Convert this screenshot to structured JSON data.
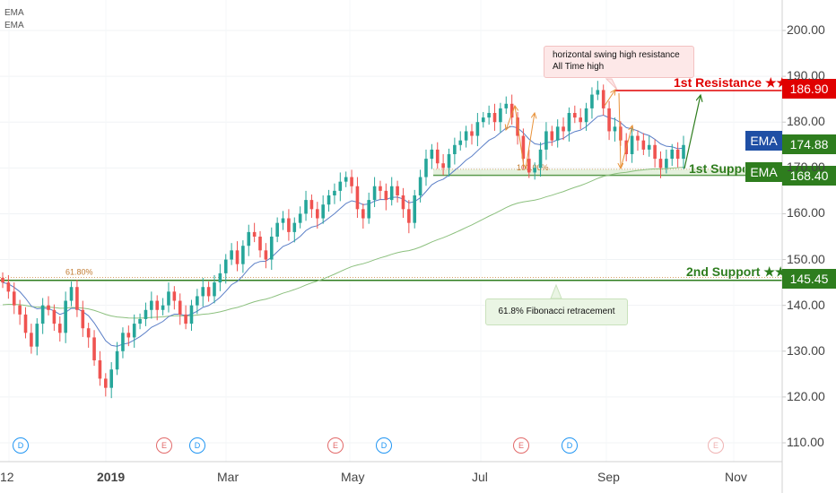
{
  "indicators": [
    "EMA",
    "EMA"
  ],
  "callouts": {
    "resistance_note_line1": "horizontal swing high resistance",
    "resistance_note_line2": "All Time high",
    "fib_note": "61.8% Fibonacci retracement"
  },
  "levels": {
    "resistance1": {
      "label": "1st Resistance ★★",
      "value": "186.90",
      "color": "#e00000"
    },
    "support1": {
      "label": "1st Support",
      "value": "168.40",
      "color": "#2e7d1e"
    },
    "support2": {
      "label": "2nd Support ★★",
      "value": "145.45",
      "color": "#2e7d1e"
    },
    "ema_value": "174.88",
    "ema_tag": "EMA",
    "ema_tag2": "EMA"
  },
  "fib_labels": {
    "fib618": "61.80%",
    "fib100": "100.00%"
  },
  "events": [
    {
      "letter": "D",
      "type": "dividend"
    },
    {
      "letter": "E",
      "type": "earnings"
    },
    {
      "letter": "D",
      "type": "dividend"
    },
    {
      "letter": "E",
      "type": "earnings"
    },
    {
      "letter": "D",
      "type": "dividend"
    },
    {
      "letter": "E",
      "type": "earnings"
    },
    {
      "letter": "D",
      "type": "dividend"
    },
    {
      "letter": "E",
      "type": "earnings"
    }
  ],
  "colors": {
    "up": "#26a69a",
    "down": "#ef5350",
    "ema_fast": "#5b7fc7",
    "ema_slow": "#8cc07e",
    "support": "#2e7d1e",
    "resistance": "#e00000",
    "ema_tag": "#1f4fa5",
    "arrow_orange": "#e8923a"
  },
  "chart_data": {
    "type": "candlestick",
    "y_axis_ticks": [
      "200.00",
      "190.00",
      "180.00",
      "170.00",
      "160.00",
      "150.00",
      "140.00",
      "130.00",
      "120.00",
      "110.00"
    ],
    "x_axis_ticks": [
      "12",
      "2019",
      "Mar",
      "May",
      "Jul",
      "Sep",
      "Nov"
    ],
    "ylim": [
      105,
      205
    ],
    "resistance": 186.9,
    "support_1": 168.4,
    "support_2": 145.45,
    "ema_last": 174.88,
    "fib_618": 146.1,
    "fib_100": 169.7,
    "close_path": [
      145,
      143,
      140,
      138,
      134,
      131,
      136,
      140,
      139,
      136,
      134,
      141,
      144,
      139,
      135,
      133,
      128,
      124,
      122,
      126,
      130,
      134,
      133,
      136,
      137,
      139,
      141,
      139,
      140,
      143,
      141,
      138,
      136,
      140,
      142,
      144,
      142,
      145,
      147,
      150,
      152,
      149,
      153,
      156,
      155,
      152,
      150,
      155,
      158,
      159,
      156,
      158,
      160,
      163,
      161,
      159,
      162,
      164,
      165,
      167,
      168,
      166,
      161,
      159,
      163,
      166,
      165,
      163,
      166,
      164,
      161,
      158,
      164,
      168,
      172,
      174,
      171,
      170,
      173,
      175,
      176,
      178,
      177,
      180,
      181,
      182,
      180,
      183,
      184,
      181,
      177,
      172,
      169,
      170,
      174,
      178,
      176,
      179,
      178,
      182,
      181,
      180,
      183,
      186,
      187,
      183,
      178,
      179,
      176,
      173,
      177,
      176,
      174,
      175,
      172,
      170,
      172,
      174,
      172,
      175
    ]
  }
}
